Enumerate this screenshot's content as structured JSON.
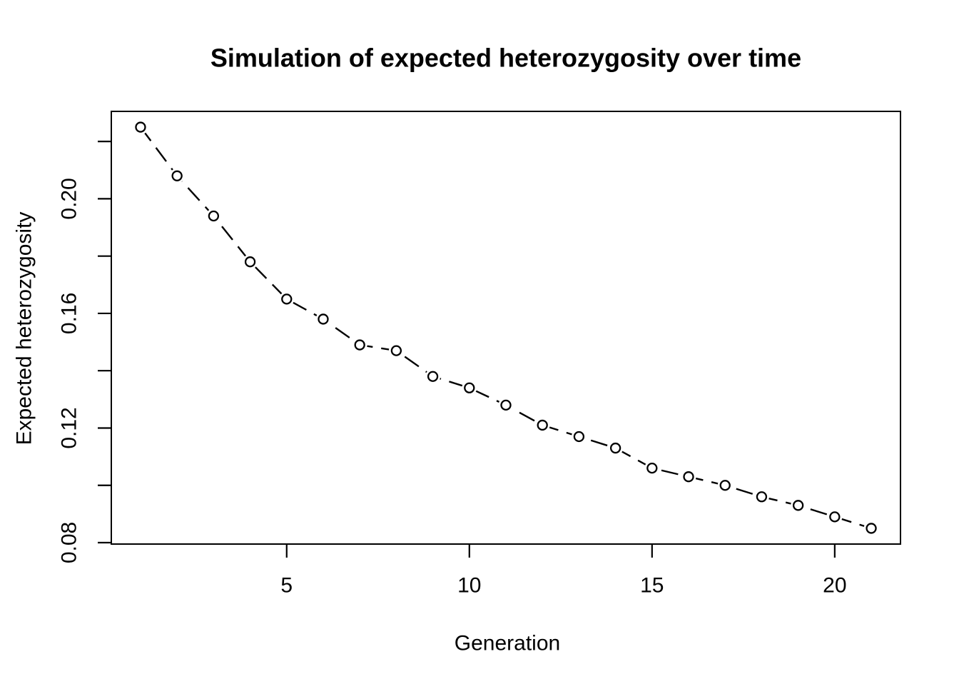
{
  "page": {
    "background": "#ffffff"
  },
  "chart_data": {
    "type": "line",
    "title": "Simulation of expected heterozygosity over time",
    "xlabel": "Generation",
    "ylabel": "Expected heterozygosity",
    "x": [
      1,
      2,
      3,
      4,
      5,
      6,
      7,
      8,
      9,
      10,
      11,
      12,
      13,
      14,
      15,
      16,
      17,
      18,
      19,
      20,
      21
    ],
    "y": [
      0.225,
      0.208,
      0.194,
      0.178,
      0.165,
      0.158,
      0.149,
      0.147,
      0.138,
      0.134,
      0.128,
      0.121,
      0.117,
      0.113,
      0.106,
      0.103,
      0.1,
      0.096,
      0.093,
      0.089,
      0.085
    ],
    "series_name": "Expected heterozygosity",
    "xlim": [
      0.2,
      21.8
    ],
    "ylim": [
      0.0795,
      0.2305
    ],
    "x_ticks": [
      {
        "value": 5,
        "label": "5"
      },
      {
        "value": 10,
        "label": "10"
      },
      {
        "value": 15,
        "label": "15"
      },
      {
        "value": 20,
        "label": "20"
      }
    ],
    "y_ticks": [
      {
        "value": 0.08,
        "label": "0.08"
      },
      {
        "value": 0.1,
        "label": ""
      },
      {
        "value": 0.12,
        "label": "0.12"
      },
      {
        "value": 0.14,
        "label": ""
      },
      {
        "value": 0.16,
        "label": "0.16"
      },
      {
        "value": 0.18,
        "label": ""
      },
      {
        "value": 0.2,
        "label": "0.20"
      },
      {
        "value": 0.22,
        "label": ""
      }
    ],
    "marker": "open-circle",
    "line_style": "dashed",
    "stroke_color": "#000000",
    "marker_fill": "#ffffff",
    "background": "#ffffff",
    "grid": false,
    "legend": null
  }
}
